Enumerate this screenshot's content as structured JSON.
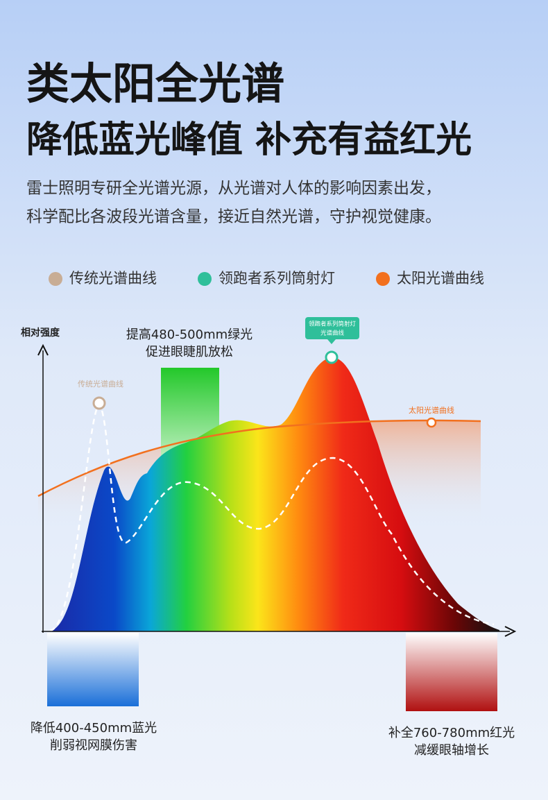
{
  "header": {
    "title": "类太阳全光谱",
    "subtitle": "降低蓝光峰值 补充有益红光",
    "description": [
      "雷士照明专研全光谱光源，从光谱对人体的影响因素出发，",
      "科学配比各波段光谱含量，接近自然光谱，守护视觉健康。"
    ]
  },
  "legend": [
    {
      "label": "传统光谱曲线",
      "color": "#c8ad95"
    },
    {
      "label": "领跑者系列筒射灯",
      "color": "#2fbf9a"
    },
    {
      "label": "太阳光谱曲线",
      "color": "#f2701e"
    }
  ],
  "chart": {
    "y_axis_label": "相对强度",
    "curve_labels": {
      "traditional": "传统光谱曲线",
      "leader": [
        "领跑者系列筒射灯",
        "光谱曲线"
      ],
      "sun": "太阳光谱曲线"
    },
    "annotations": {
      "green": [
        "提高480-500mm绿光",
        "促进眼睫肌放松"
      ],
      "blue": [
        "降低400-450mm蓝光",
        "削弱视网膜伤害"
      ],
      "red": [
        "补全760-780mm红光",
        "减缓眼轴增长"
      ]
    }
  }
}
